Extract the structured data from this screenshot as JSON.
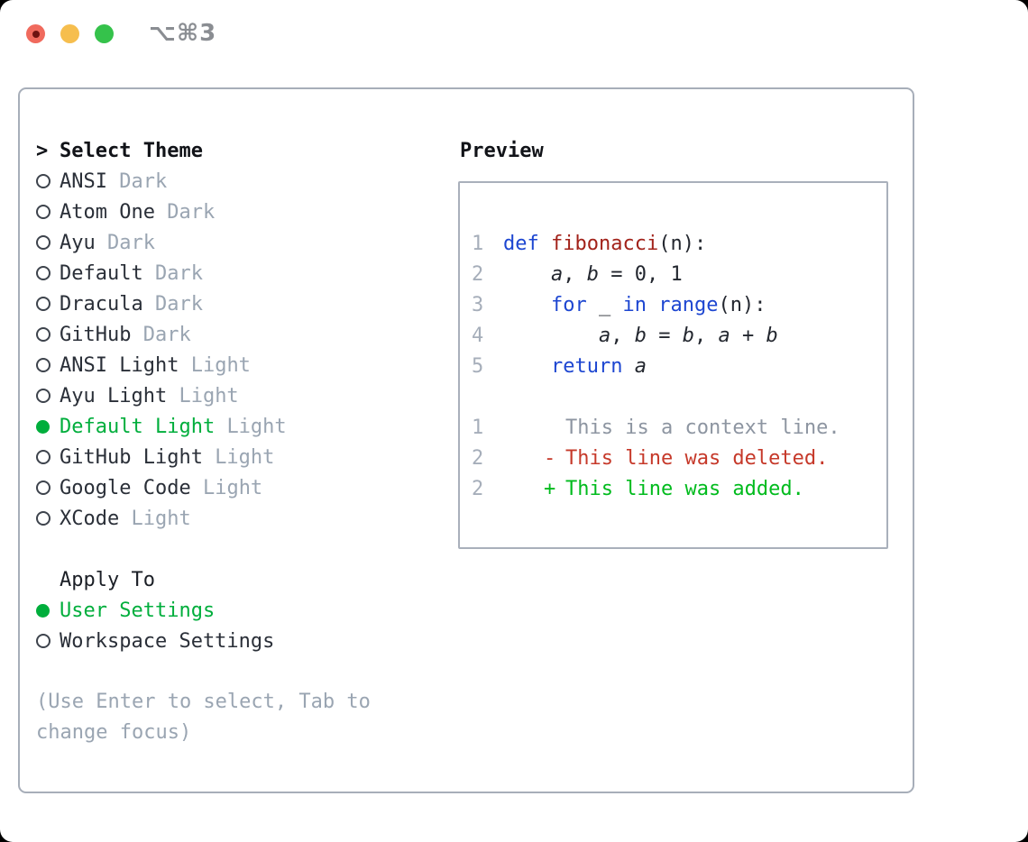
{
  "titlebar": {
    "title": "⌥⌘3"
  },
  "theme_list": {
    "header": {
      "cursor": ">",
      "label": "Select Theme"
    },
    "items": [
      {
        "label": "ANSI",
        "tag": "Dark",
        "selected": false
      },
      {
        "label": "Atom One",
        "tag": "Dark",
        "selected": false
      },
      {
        "label": "Ayu",
        "tag": "Dark",
        "selected": false
      },
      {
        "label": "Default",
        "tag": "Dark",
        "selected": false
      },
      {
        "label": "Dracula",
        "tag": "Dark",
        "selected": false
      },
      {
        "label": "GitHub",
        "tag": "Dark",
        "selected": false
      },
      {
        "label": "ANSI Light",
        "tag": "Light",
        "selected": false
      },
      {
        "label": "Ayu Light",
        "tag": "Light",
        "selected": false
      },
      {
        "label": "Default Light",
        "tag": "Light",
        "selected": true
      },
      {
        "label": "GitHub Light",
        "tag": "Light",
        "selected": false
      },
      {
        "label": "Google Code",
        "tag": "Light",
        "selected": false
      },
      {
        "label": "XCode",
        "tag": "Light",
        "selected": false
      }
    ]
  },
  "apply_to": {
    "header": "Apply To",
    "options": [
      {
        "label": "User Settings",
        "selected": true
      },
      {
        "label": "Workspace Settings",
        "selected": false
      }
    ]
  },
  "hint": "(Use Enter to select, Tab to change focus)",
  "preview": {
    "title": "Preview",
    "code_lines": [
      {
        "num": "1",
        "segments": [
          [
            "kw",
            "def"
          ],
          [
            "pl",
            " "
          ],
          [
            "fn",
            "fibonacci"
          ],
          [
            "pl",
            "(n):"
          ]
        ]
      },
      {
        "num": "2",
        "segments": [
          [
            "pl",
            "    "
          ],
          [
            "var",
            "a"
          ],
          [
            "pl",
            ", "
          ],
          [
            "var",
            "b"
          ],
          [
            "pl",
            " = 0, 1"
          ]
        ]
      },
      {
        "num": "3",
        "segments": [
          [
            "pl",
            "    "
          ],
          [
            "kw",
            "for"
          ],
          [
            "pl",
            " _ "
          ],
          [
            "kw",
            "in"
          ],
          [
            "pl",
            " "
          ],
          [
            "kw",
            "range"
          ],
          [
            "pl",
            "(n):"
          ]
        ]
      },
      {
        "num": "4",
        "segments": [
          [
            "pl",
            "        "
          ],
          [
            "var",
            "a"
          ],
          [
            "pl",
            ", "
          ],
          [
            "var",
            "b"
          ],
          [
            "pl",
            " = "
          ],
          [
            "var",
            "b"
          ],
          [
            "pl",
            ", "
          ],
          [
            "var",
            "a"
          ],
          [
            "pl",
            " + "
          ],
          [
            "var",
            "b"
          ]
        ]
      },
      {
        "num": "5",
        "segments": [
          [
            "pl",
            "    "
          ],
          [
            "kw",
            "return"
          ],
          [
            "pl",
            " "
          ],
          [
            "var",
            "a"
          ]
        ]
      }
    ],
    "diff_lines": [
      {
        "num": "1",
        "marker": " ",
        "text": "This is a context line.",
        "type": "context"
      },
      {
        "num": "2",
        "marker": "-",
        "text": "This line was deleted.",
        "type": "deleted"
      },
      {
        "num": "2",
        "marker": "+",
        "text": "This line was added.",
        "type": "added"
      }
    ]
  },
  "colors": {
    "accent_green": "#00ae3c",
    "keyword_blue": "#1d46d1",
    "function_red": "#a2221a",
    "deleted_red": "#c6392a",
    "added_green": "#00bb1d",
    "muted_gray": "#9aa5b2",
    "line_number_gray": "#a6aeba",
    "border_gray": "#a7aeb9",
    "traffic_red": "#f06a5d",
    "traffic_yellow": "#f6be4e",
    "traffic_green": "#35c24b"
  }
}
